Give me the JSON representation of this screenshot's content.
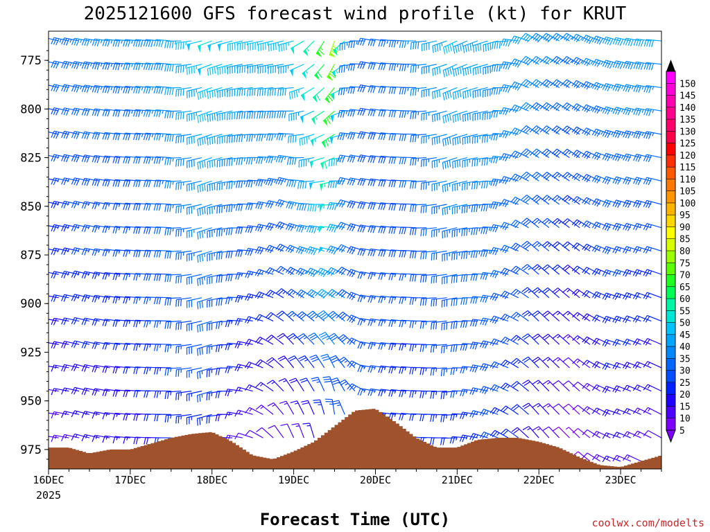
{
  "chart_data": {
    "type": "wind-barb",
    "title": "2025121600 GFS forecast wind profile (kt) for KRUT",
    "xlabel": "Forecast Time (UTC)",
    "credit": "coolwx.com/modelts",
    "y_axis": {
      "label": "",
      "ticks": [
        "775",
        "800",
        "825",
        "850",
        "875",
        "900",
        "925",
        "950",
        "975"
      ],
      "ylim": [
        985,
        760
      ],
      "inverted": true,
      "unit": "hPa"
    },
    "x_axis": {
      "ticks": [
        "16DEC",
        "17DEC",
        "18DEC",
        "19DEC",
        "20DEC",
        "21DEC",
        "22DEC",
        "23DEC"
      ],
      "year_label": "2025",
      "xlim": [
        0,
        7.5
      ],
      "unit": "days since 16DEC 00Z"
    },
    "levels": [
      765,
      777,
      789,
      801,
      813,
      825,
      837,
      849,
      861,
      873,
      885,
      897,
      909,
      921,
      933,
      945,
      957,
      969,
      981
    ],
    "time_step_hours": 3,
    "colorbar": {
      "values": [
        5,
        10,
        15,
        20,
        25,
        30,
        35,
        40,
        45,
        50,
        55,
        60,
        65,
        70,
        75,
        80,
        85,
        90,
        95,
        100,
        105,
        110,
        115,
        120,
        125,
        130,
        135,
        140,
        145,
        150
      ],
      "colors": [
        "#7d00ff",
        "#4c00ff",
        "#1f00ff",
        "#0020ff",
        "#004cff",
        "#0066ff",
        "#0088ff",
        "#00a5ff",
        "#00c4ff",
        "#00e6d6",
        "#00f5a5",
        "#00ff55",
        "#22ff22",
        "#5cff00",
        "#9cff00",
        "#d8ff00",
        "#ffff00",
        "#ffd700",
        "#ffb400",
        "#ff9600",
        "#ff7800",
        "#ff5a00",
        "#ff3000",
        "#ff0000",
        "#ff0048",
        "#ff006a",
        "#ff008a",
        "#ff00b0",
        "#ff00d8",
        "#ff00ff"
      ]
    },
    "terrain_color": "#a0522d",
    "terrain_surface_pressure": {
      "time_days": [
        0,
        0.25,
        0.5,
        0.75,
        1.0,
        1.25,
        1.5,
        1.75,
        2.0,
        2.25,
        2.5,
        2.75,
        3.0,
        3.25,
        3.5,
        3.75,
        4.0,
        4.25,
        4.5,
        4.75,
        5.0,
        5.25,
        5.5,
        5.75,
        6.0,
        6.25,
        6.5,
        6.75,
        7.0,
        7.25,
        7.5
      ],
      "pressure_hPa": [
        974,
        974,
        977,
        975,
        975,
        972,
        969,
        967,
        966,
        971,
        978,
        980,
        976,
        971,
        963,
        955,
        954,
        961,
        969,
        974,
        974,
        970,
        969,
        969,
        971,
        974,
        979,
        983,
        984,
        981,
        978
      ]
    },
    "wind_speed_kt_by_day": {
      "time_days": [
        0,
        0.5,
        1.0,
        1.5,
        2.0,
        2.5,
        3.0,
        3.25,
        3.5,
        3.75,
        4.0,
        4.5,
        5.0,
        5.5,
        6.0,
        6.5,
        7.0,
        7.5
      ],
      "upper_levels_kt": [
        30,
        35,
        35,
        40,
        50,
        45,
        45,
        55,
        75,
        35,
        30,
        35,
        45,
        40,
        40,
        35,
        40,
        40
      ],
      "lower_levels_kt": [
        10,
        15,
        15,
        20,
        20,
        10,
        10,
        15,
        20,
        25,
        25,
        20,
        20,
        25,
        15,
        5,
        15,
        10
      ],
      "upper_dir_deg": [
        285,
        280,
        275,
        275,
        250,
        260,
        255,
        225,
        200,
        260,
        280,
        270,
        245,
        255,
        300,
        300,
        285,
        275
      ],
      "lower_dir_deg": [
        275,
        285,
        275,
        270,
        255,
        290,
        340,
        350,
        10,
        330,
        280,
        275,
        270,
        295,
        320,
        315,
        290,
        300
      ]
    },
    "grid": false
  }
}
